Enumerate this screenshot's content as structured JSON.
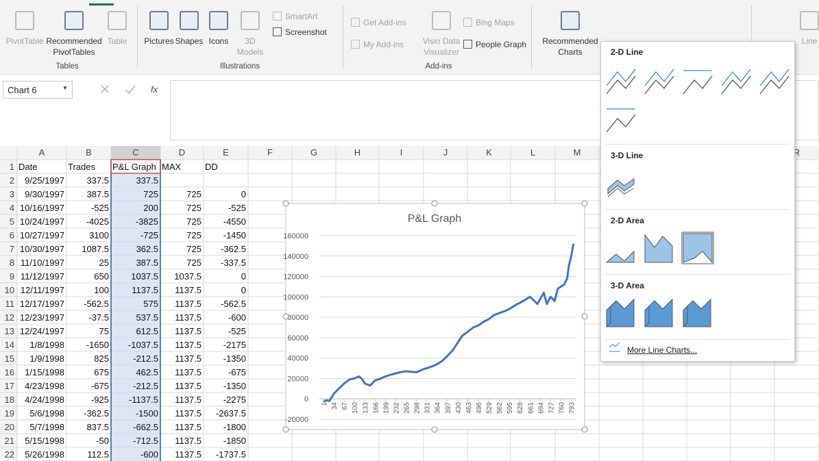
{
  "ribbon": {
    "groups": [
      {
        "label": "Tables",
        "buttons": [
          "PivotTable",
          "Recommended PivotTables",
          "Table"
        ]
      },
      {
        "label": "Illustrations",
        "buttons": [
          "Pictures",
          "Shapes",
          "Icons",
          "3D Models",
          "SmartArt",
          "Screenshot"
        ]
      },
      {
        "label": "Add-ins",
        "buttons": [
          "Get Add-ins",
          "My Add-ins",
          "Visio Data Visualizer",
          "Bing Maps",
          "People Graph"
        ]
      },
      {
        "label": null,
        "buttons": [
          "Recommended Charts",
          "Line"
        ]
      }
    ]
  },
  "formula_bar": {
    "name_box": "Chart 6",
    "fx": "fx"
  },
  "spreadsheet": {
    "columns": [
      "A",
      "B",
      "C",
      "D",
      "E",
      "F",
      "G",
      "H",
      "I",
      "J",
      "K",
      "L",
      "M",
      "R"
    ],
    "row_numbers": [
      1,
      2,
      3,
      4,
      5,
      6,
      7,
      8,
      9,
      10,
      11,
      12,
      13,
      14,
      15,
      16,
      17,
      18,
      19,
      20,
      21,
      22
    ],
    "rows": [
      [
        "Date",
        "Trades",
        "P&L Graph",
        "MAX",
        "DD"
      ],
      [
        "9/25/1997",
        "337.5",
        "337.5",
        null,
        null
      ],
      [
        "9/30/1997",
        "387.5",
        "725",
        "725",
        "0"
      ],
      [
        "10/16/1997",
        "-525",
        "200",
        "725",
        "-525"
      ],
      [
        "10/24/1997",
        "-4025",
        "-3825",
        "725",
        "-4550"
      ],
      [
        "10/27/1997",
        "3100",
        "-725",
        "725",
        "-1450"
      ],
      [
        "10/30/1997",
        "1087.5",
        "362.5",
        "725",
        "-362.5"
      ],
      [
        "11/10/1997",
        "25",
        "387.5",
        "725",
        "-337.5"
      ],
      [
        "11/12/1997",
        "650",
        "1037.5",
        "1037.5",
        "0"
      ],
      [
        "12/11/1997",
        "100",
        "1137.5",
        "1137.5",
        "0"
      ],
      [
        "12/17/1997",
        "-562.5",
        "575",
        "1137.5",
        "-562.5"
      ],
      [
        "12/23/1997",
        "-37.5",
        "537.5",
        "1137.5",
        "-600"
      ],
      [
        "12/24/1997",
        "75",
        "612.5",
        "1137.5",
        "-525"
      ],
      [
        "1/8/1998",
        "-1650",
        "-1037.5",
        "1137.5",
        "-2175"
      ],
      [
        "1/9/1998",
        "825",
        "-212.5",
        "1137.5",
        "-1350"
      ],
      [
        "1/15/1998",
        "675",
        "462.5",
        "1137.5",
        "-675"
      ],
      [
        "4/23/1998",
        "-675",
        "-212.5",
        "1137.5",
        "-1350"
      ],
      [
        "4/24/1998",
        "-925",
        "-1137.5",
        "1137.5",
        "-2275"
      ],
      [
        "5/6/1998",
        "-362.5",
        "-1500",
        "1137.5",
        "-2637.5"
      ],
      [
        "5/7/1998",
        "837.5",
        "-662.5",
        "1137.5",
        "-1800"
      ],
      [
        "5/15/1998",
        "-50",
        "-712.5",
        "1137.5",
        "-1850"
      ],
      [
        "5/26/1998",
        "112.5",
        "-600",
        "1137.5",
        "-1737.5"
      ]
    ]
  },
  "chart_data": {
    "type": "line",
    "title": "P&L Graph",
    "color": "#4472c4",
    "grid": true,
    "x": [
      1,
      10,
      20,
      34,
      50,
      67,
      85,
      100,
      115,
      125,
      133,
      150,
      166,
      185,
      199,
      220,
      245,
      265,
      298,
      320,
      331,
      350,
      364,
      380,
      397,
      415,
      430,
      445,
      463,
      480,
      496,
      515,
      529,
      545,
      562,
      580,
      595,
      615,
      628,
      645,
      661,
      675,
      685,
      694,
      705,
      715,
      727,
      740,
      750,
      760,
      770,
      780,
      785,
      793,
      800
    ],
    "values": [
      -3000,
      -1500,
      -2000,
      5000,
      10000,
      15000,
      19000,
      20000,
      22000,
      19000,
      15000,
      13000,
      18000,
      20000,
      22000,
      24000,
      26000,
      27000,
      26000,
      29000,
      30000,
      32000,
      34000,
      37000,
      42000,
      48000,
      55000,
      62000,
      66000,
      70000,
      72000,
      76000,
      78000,
      82000,
      84000,
      86000,
      88000,
      92000,
      94000,
      97000,
      100000,
      96000,
      93000,
      98000,
      104000,
      93000,
      100000,
      96000,
      108000,
      110000,
      112000,
      118000,
      130000,
      140000,
      152000
    ],
    "xlim": [
      1,
      805
    ],
    "xticks": [
      1,
      34,
      67,
      100,
      133,
      166,
      199,
      232,
      265,
      298,
      331,
      364,
      397,
      430,
      463,
      496,
      529,
      562,
      595,
      628,
      661,
      694,
      727,
      760,
      793
    ],
    "ylim": [
      -20000,
      160000
    ],
    "yticks": [
      -20000,
      0,
      20000,
      40000,
      60000,
      80000,
      100000,
      120000,
      140000,
      160000
    ]
  },
  "dropdown": {
    "sections": [
      "2-D Line",
      "3-D Line",
      "2-D Area",
      "3-D Area"
    ],
    "more": "More Line Charts..."
  }
}
